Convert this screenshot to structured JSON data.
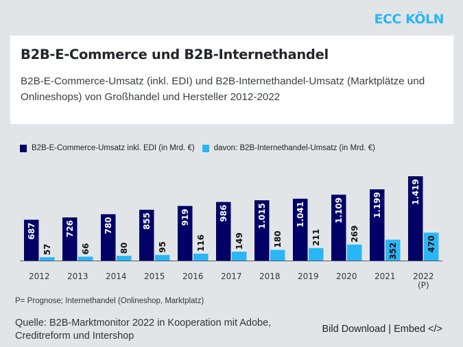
{
  "logo": "ECC KÖLN",
  "title": "B2B-E-Commerce und B2B-Internethandel",
  "subtitle": "B2B-E-Commerce-Umsatz (inkl. EDI) und B2B-Internethandel-Umsatz (Marktplätze und Onlineshops) von Großhandel und Hersteller 2012-2022",
  "note": "P= Prognose; Internethandel (Onlineshop, Marktplatz)",
  "source": "Quelle: B2B-Marktmonitor 2022 in Kooperation mit Adobe, Creditreform und Intershop",
  "links": {
    "download": "Bild Download",
    "separator": "|",
    "embed": "Embed </>"
  },
  "colors": {
    "ecommerce": "#000066",
    "internethandel": "#29b6f6",
    "logo": "#29b6f6",
    "background": "#e2e5e8"
  },
  "chart_data": {
    "type": "bar",
    "categories": [
      "2012",
      "2013",
      "2014",
      "2015",
      "2016",
      "2017",
      "2018",
      "2019",
      "2020",
      "2021",
      "2022\n(P)"
    ],
    "series": [
      {
        "name": "B2B-E-Commerce-Umsatz inkl. EDI (in Mrd. €)",
        "values": [
          687,
          726,
          780,
          855,
          919,
          986,
          1015,
          1041,
          1109,
          1199,
          1419
        ],
        "labels": [
          "687",
          "726",
          "780",
          "855",
          "919",
          "986",
          "1.015",
          "1.041",
          "1.109",
          "1.199",
          "1.419"
        ]
      },
      {
        "name": "davon: B2B-Internethandel-Umsatz (in Mrd. €)",
        "values": [
          57,
          66,
          80,
          95,
          116,
          149,
          180,
          211,
          269,
          352,
          470
        ],
        "labels": [
          "57",
          "66",
          "80",
          "95",
          "116",
          "149",
          "180",
          "211",
          "269",
          "352",
          "470"
        ]
      }
    ],
    "ylim": [
      0,
      1500
    ],
    "grid": false,
    "legend_placement": "top-left",
    "data_labels": "rotated vertical"
  }
}
